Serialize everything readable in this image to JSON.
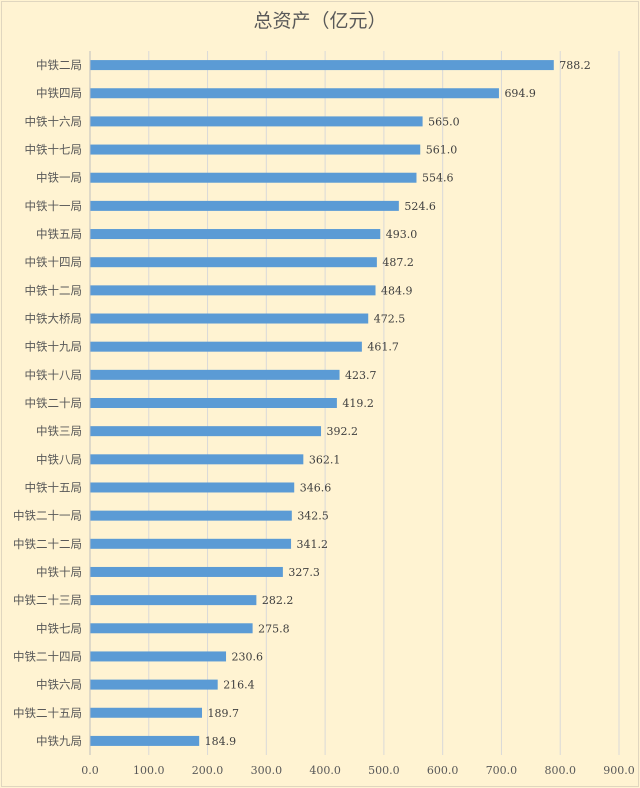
{
  "chart_data": {
    "type": "bar",
    "orientation": "horizontal",
    "title": "总资产（亿元）",
    "categories": [
      "中铁二局",
      "中铁四局",
      "中铁十六局",
      "中铁十七局",
      "中铁一局",
      "中铁十一局",
      "中铁五局",
      "中铁十四局",
      "中铁十二局",
      "中铁大桥局",
      "中铁十九局",
      "中铁十八局",
      "中铁二十局",
      "中铁三局",
      "中铁八局",
      "中铁十五局",
      "中铁二十一局",
      "中铁二十二局",
      "中铁十局",
      "中铁二十三局",
      "中铁七局",
      "中铁二十四局",
      "中铁六局",
      "中铁二十五局",
      "中铁九局"
    ],
    "values": [
      788.2,
      694.9,
      565.0,
      561.0,
      554.6,
      524.6,
      493.0,
      487.2,
      484.9,
      472.5,
      461.7,
      423.7,
      419.2,
      392.2,
      362.1,
      346.6,
      342.5,
      341.2,
      327.3,
      282.2,
      275.8,
      230.6,
      216.4,
      189.7,
      184.9
    ],
    "data_labels": [
      "788.2",
      "694.9",
      "565.0",
      "561.0",
      "554.6",
      "524.6",
      "493.0",
      "487.2",
      "484.9",
      "472.5",
      "461.7",
      "423.7",
      "419.2",
      "392.2",
      "362.1",
      "346.6",
      "342.5",
      "341.2",
      "327.3",
      "282.2",
      "275.8",
      "230.6",
      "216.4",
      "189.7",
      "184.9"
    ],
    "xlim": [
      0,
      900
    ],
    "xticks": [
      "0.0",
      "100.0",
      "200.0",
      "300.0",
      "400.0",
      "500.0",
      "600.0",
      "700.0",
      "800.0",
      "900.0"
    ],
    "xlabel": "",
    "ylabel": "",
    "grid": "vertical",
    "legend": "none",
    "colors": {
      "bar": "#5b9bd5",
      "background": "#fff3d2",
      "grid": "#d9d9d9",
      "text": "#595959"
    }
  }
}
